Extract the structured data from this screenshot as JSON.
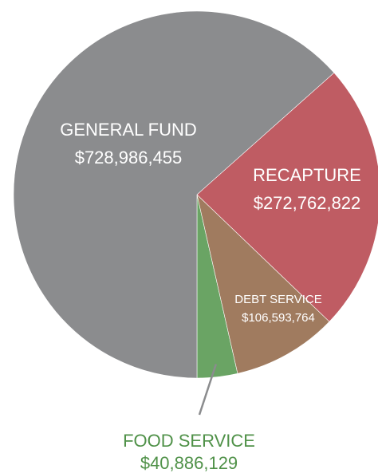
{
  "chart_data": {
    "type": "pie",
    "start_angle_deg": 90,
    "direction": "clockwise",
    "slices": [
      {
        "category": "FOOD SERVICE",
        "value": 40886129,
        "value_label": "$40,886,129",
        "color": "#6AA464",
        "label_color": "#4F9148"
      },
      {
        "category": "DEBT SERVICE",
        "value": 106593764,
        "value_label": "$106,593,764",
        "color": "#A07B5F",
        "label_color": "#FFFFFF"
      },
      {
        "category": "RECAPTURE",
        "value": 272762822,
        "value_label": "$272,762,822",
        "color": "#BF5C63",
        "label_color": "#FFFFFF"
      },
      {
        "category": "GENERAL FUND",
        "value": 728986455,
        "value_label": "$728,986,455",
        "color": "#8B8C8E",
        "label_color": "#FFFFFF"
      }
    ]
  }
}
